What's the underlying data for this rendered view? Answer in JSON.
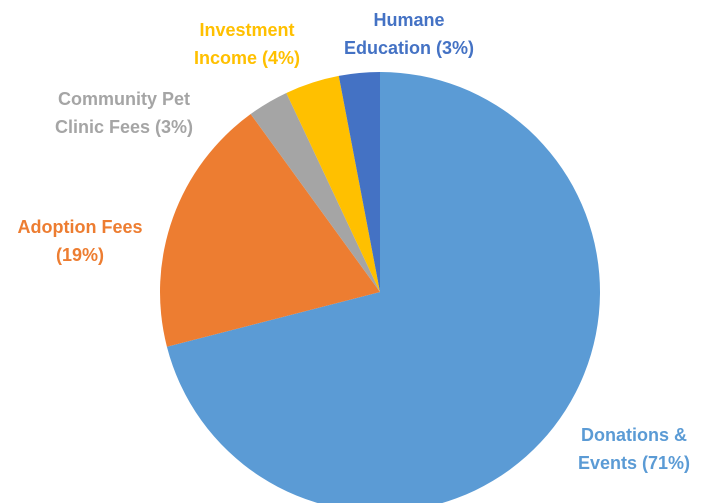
{
  "chart_data": {
    "type": "pie",
    "title": "",
    "start_angle_deg": 0,
    "direction": "clockwise",
    "legend": "none",
    "slices": [
      {
        "key": "donations",
        "label_lines": [
          "Donations &",
          "Events (71%)"
        ],
        "name": "Donations & Events",
        "value": 71,
        "color": "#5B9BD5"
      },
      {
        "key": "adoption",
        "label_lines": [
          "Adoption Fees",
          "(19%)"
        ],
        "name": "Adoption Fees",
        "value": 19,
        "color": "#ED7D31"
      },
      {
        "key": "clinic",
        "label_lines": [
          "Community Pet",
          "Clinic Fees (3%)"
        ],
        "name": "Community Pet Clinic Fees",
        "value": 3,
        "color": "#A5A5A5"
      },
      {
        "key": "investment",
        "label_lines": [
          "Investment",
          "Income (4%)"
        ],
        "name": "Investment Income",
        "value": 4,
        "color": "#FFC000"
      },
      {
        "key": "humane",
        "label_lines": [
          "Humane",
          "Education (3%)"
        ],
        "name": "Humane Education",
        "value": 3,
        "color": "#4472C4"
      }
    ]
  }
}
